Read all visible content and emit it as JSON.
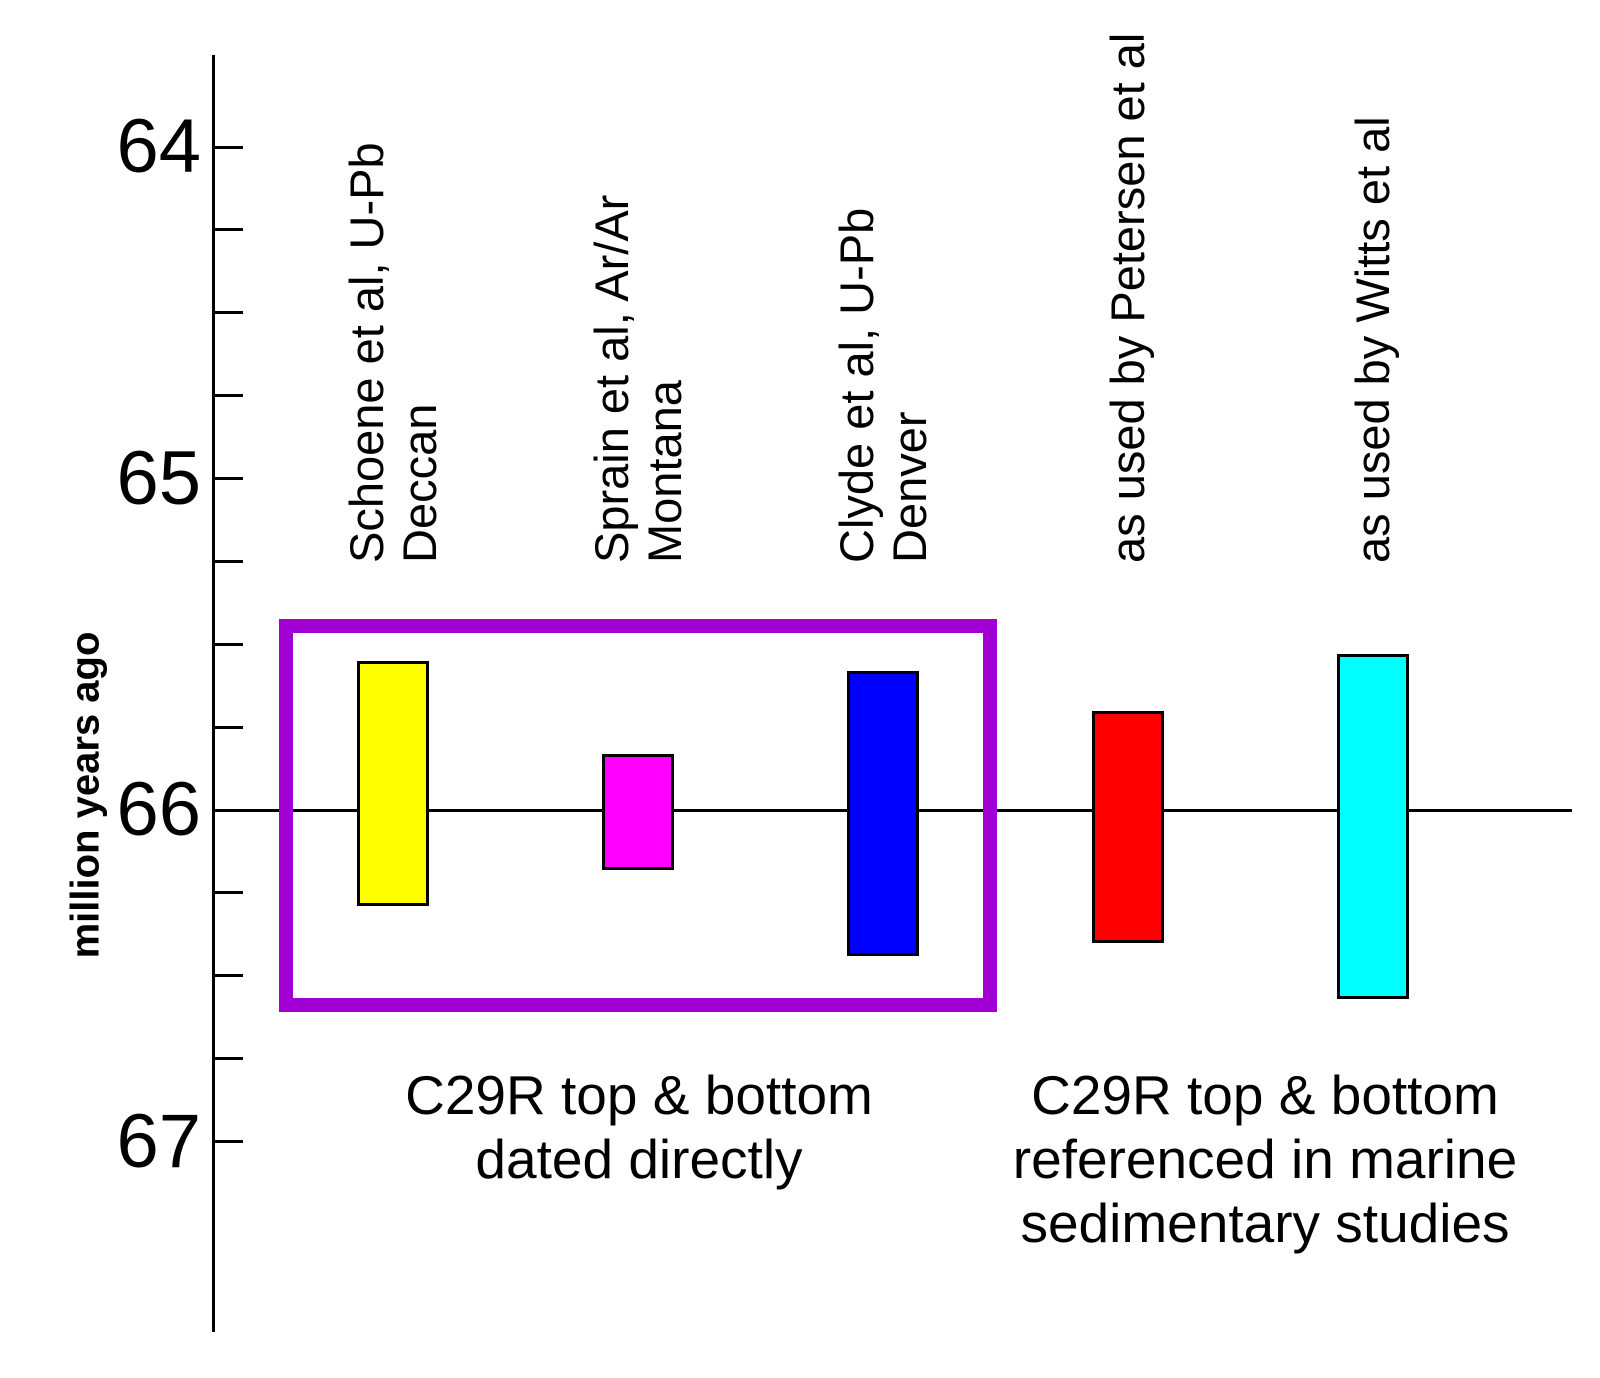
{
  "chart_data": {
    "type": "bar",
    "subtype": "floating-range-bars (age interval of magnetochron C29R per study)",
    "ylabel": "million years ago",
    "ylim": [
      63.7,
      67.6
    ],
    "y_inverted": true,
    "grid": false,
    "legend": "none",
    "major_ticks": [
      64,
      65,
      66,
      67
    ],
    "minor_tick_step": 0.25,
    "reference_line_value": 66,
    "series": [
      {
        "name": "Schoene et al, U-Pb\nDeccan",
        "color": "#ffff00",
        "top": 65.55,
        "bottom": 66.29
      },
      {
        "name": "Sprain et al, Ar/Ar\nMontana",
        "color": "#ff00ff",
        "top": 65.83,
        "bottom": 66.18
      },
      {
        "name": "Clyde et al, U-Pb\nDenver",
        "color": "#0000ff",
        "top": 65.58,
        "bottom": 66.44
      },
      {
        "name": "as used by Petersen et al",
        "color": "#ff0000",
        "top": 65.7,
        "bottom": 66.4
      },
      {
        "name": "as used by Witts et al",
        "color": "#00ffff",
        "top": 65.53,
        "bottom": 66.57
      }
    ],
    "highlight_box": {
      "color": "#a000d3",
      "encloses_series": [
        0,
        1,
        2
      ],
      "top": 65.42,
      "bottom": 66.61
    },
    "annotations": [
      {
        "text": "C29R top & bottom\ndated directly"
      },
      {
        "text": "C29R top & bottom\nreferenced in marine\nsedimentary studies"
      }
    ]
  }
}
